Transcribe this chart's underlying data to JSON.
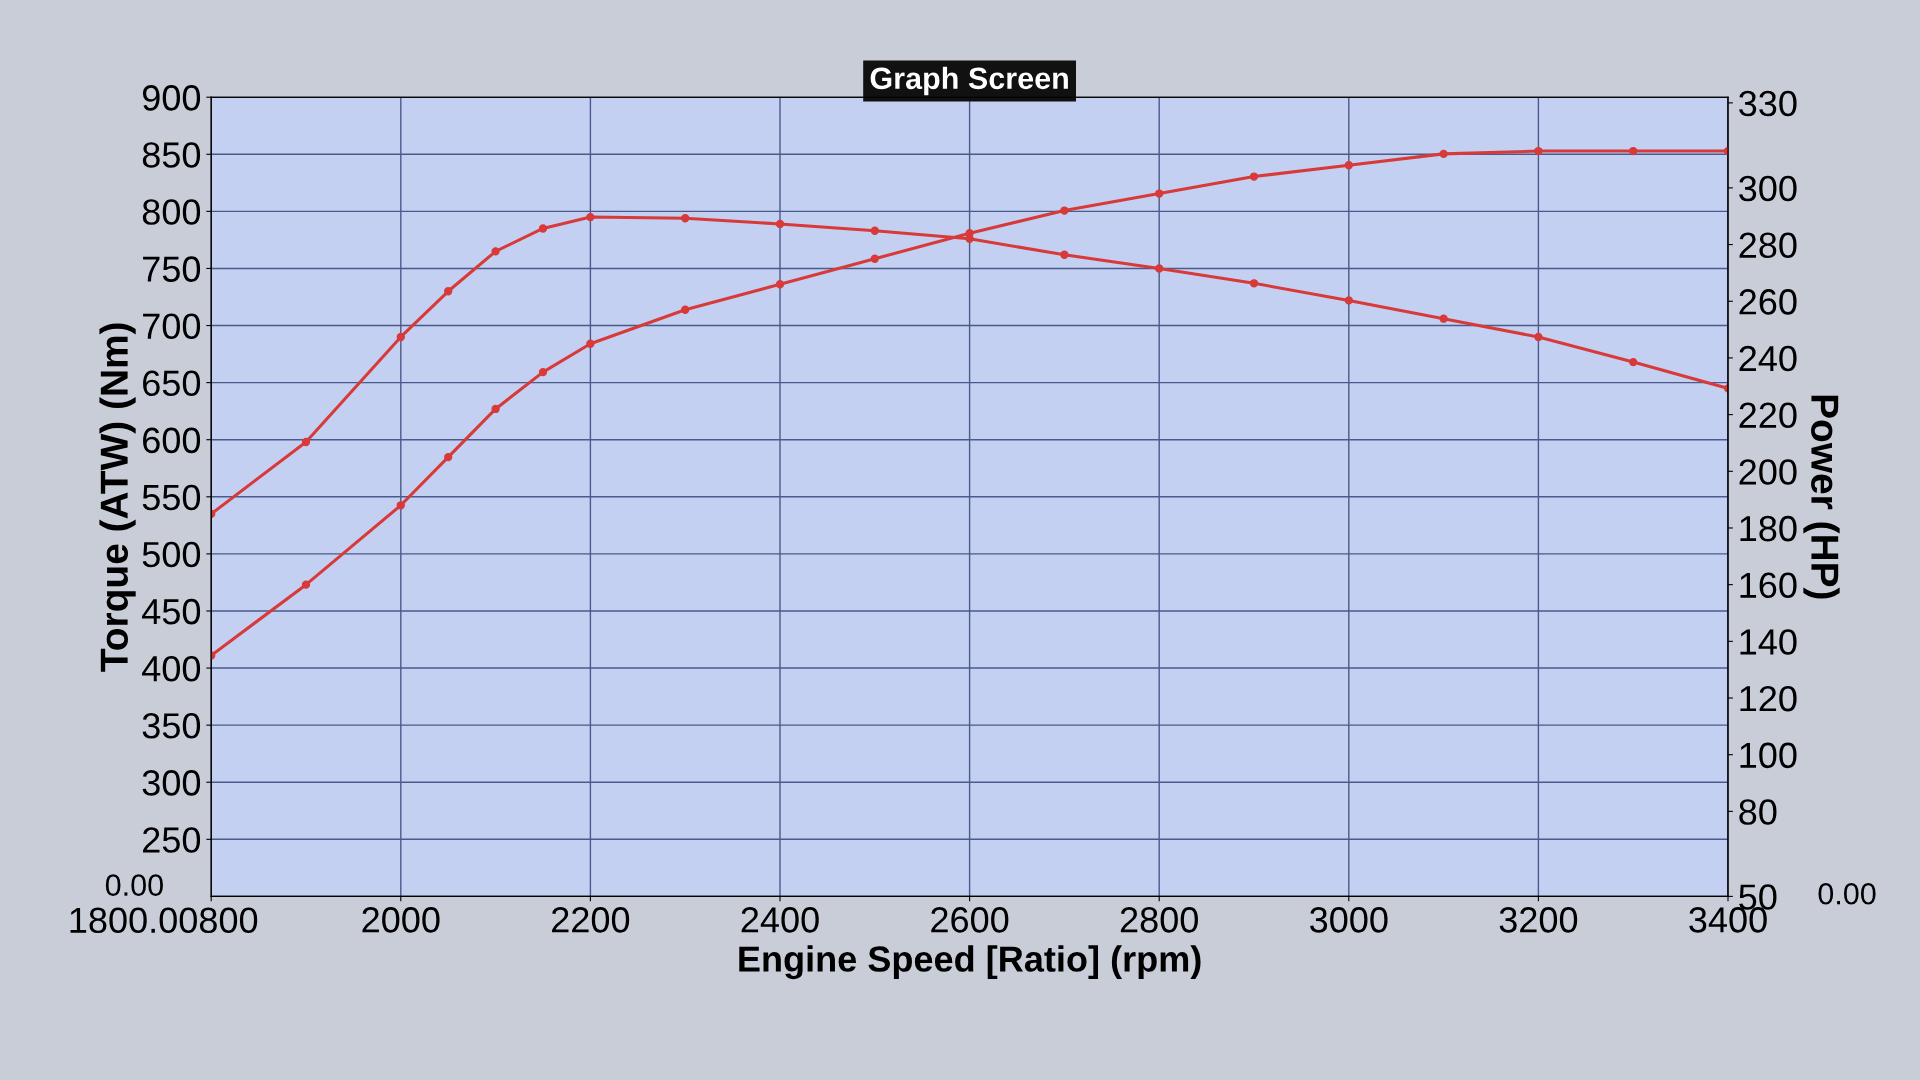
{
  "chart_data": {
    "type": "line",
    "title": "Graph Screen",
    "xlabel": "Engine Speed [Ratio] (rpm)",
    "ylabel": "Torque (ATW) (Nm)",
    "y2label": "Power (HP)",
    "x": [
      1800,
      1900,
      2000,
      2050,
      2100,
      2150,
      2200,
      2300,
      2400,
      2500,
      2600,
      2700,
      2800,
      2900,
      3000,
      3100,
      3200,
      3300,
      3400
    ],
    "series": [
      {
        "color": "#d83a3a",
        "values": [
          535,
          598,
          690,
          730,
          765,
          785,
          795,
          794,
          789,
          783,
          776,
          762,
          750,
          737,
          722,
          706,
          690,
          668,
          645
        ]
      },
      {
        "color": "#d83a3a",
        "axis": "y2",
        "values": [
          135,
          160,
          188,
          205,
          222,
          235,
          245,
          257,
          266,
          275,
          284,
          292,
          298,
          304,
          308,
          312,
          313,
          313,
          313
        ]
      }
    ],
    "xlim": [
      1800,
      3400
    ],
    "xticks": [
      {
        "value": 1800,
        "label": null
      },
      2000,
      2200,
      2400,
      2600,
      2800,
      3000,
      3200,
      3400
    ],
    "ylim": [
      200,
      900
    ],
    "yticks": [
      250,
      300,
      350,
      400,
      450,
      500,
      550,
      600,
      650,
      700,
      750,
      800,
      850,
      900
    ],
    "y2lim": [
      50,
      332
    ],
    "y2ticks": [
      50,
      80,
      100,
      120,
      140,
      160,
      180,
      200,
      220,
      240,
      260,
      280,
      300,
      330
    ],
    "annotations": [
      "0.00",
      "0.00",
      "1800.00800"
    ],
    "grid": true,
    "marker": "circle",
    "line_style": "solid"
  }
}
